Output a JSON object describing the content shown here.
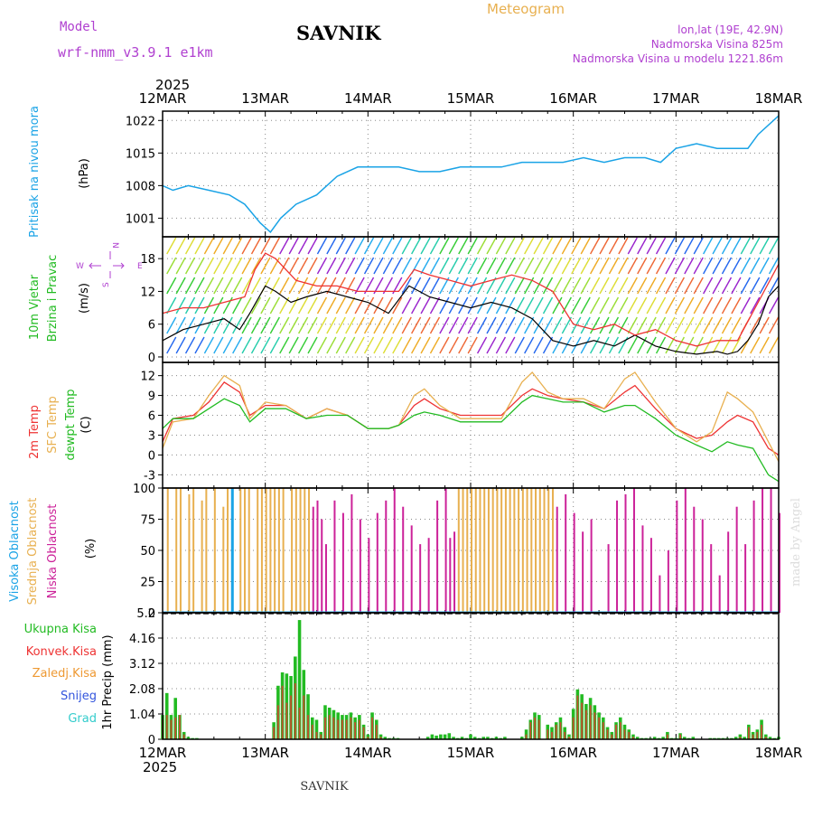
{
  "header": {
    "title": "SAVNIK",
    "meteogram_label": "Meteogram",
    "model_label": "Model",
    "model_name": "wrf-nmm_v3.9.1  e1km",
    "lonlat": "lon,lat (19E, 42.9N)",
    "altitude": "Nadmorska Visina 825m",
    "model_altitude": "Nadmorska Visina u modelu 1221.86m",
    "year_top": "2025",
    "year_bottom": "2025",
    "footer_title": "SAVNIK",
    "watermark": "made by Angel"
  },
  "colors": {
    "pressure": "#1aa3e6",
    "purple_text": "#b040d0",
    "orange_text": "#e8b050",
    "green": "#22bb22",
    "red": "#ee3333",
    "orange": "#ee9933",
    "blue": "#3355dd",
    "cyan": "#33cccc",
    "magenta": "#cc2299"
  },
  "x_axis": {
    "tick_labels": [
      "12MAR",
      "13MAR",
      "14MAR",
      "15MAR",
      "16MAR",
      "17MAR",
      "18MAR"
    ]
  },
  "chart_data": [
    {
      "type": "line",
      "panel": "pressure",
      "ylabel_main": "Pritisak na nivou mora",
      "unit": "(hPa)",
      "yticks": [
        "1001",
        "1008",
        "1015",
        "1022"
      ],
      "ylim": [
        997,
        1024
      ],
      "x_unit": "days since 12MAR 00h",
      "series": [
        {
          "name": "Pritisak na nivou mora",
          "color": "#1aa3e6",
          "x": [
            0,
            0.1,
            0.25,
            0.45,
            0.65,
            0.8,
            0.95,
            1.05,
            1.15,
            1.3,
            1.5,
            1.7,
            1.9,
            2.1,
            2.3,
            2.5,
            2.7,
            2.9,
            3.1,
            3.3,
            3.5,
            3.7,
            3.9,
            4.1,
            4.3,
            4.5,
            4.7,
            4.85,
            5.0,
            5.2,
            5.4,
            5.6,
            5.7,
            5.8,
            6.0
          ],
          "values": [
            1008,
            1007,
            1008,
            1007,
            1006,
            1004,
            1000,
            998,
            1001,
            1004,
            1006,
            1010,
            1012,
            1012,
            1012,
            1011,
            1011,
            1012,
            1012,
            1012,
            1013,
            1013,
            1013,
            1014,
            1013,
            1014,
            1014,
            1013,
            1016,
            1017,
            1016,
            1016,
            1016,
            1019,
            1023
          ]
        }
      ]
    },
    {
      "type": "line",
      "panel": "wind",
      "ylabel_main": "10m Vjetar",
      "ylabel_sub": "Brzina i Pravac",
      "unit": "(m/s)",
      "compass": [
        "N",
        "E",
        "S",
        "W"
      ],
      "yticks": [
        "0",
        "6",
        "12",
        "18"
      ],
      "ylim": [
        -1,
        22
      ],
      "series": [
        {
          "name": "speed",
          "color": "#000000",
          "x": [
            0,
            0.2,
            0.4,
            0.6,
            0.75,
            0.85,
            1.0,
            1.1,
            1.25,
            1.4,
            1.6,
            1.8,
            2.0,
            2.2,
            2.4,
            2.5,
            2.6,
            2.8,
            3.0,
            3.2,
            3.4,
            3.6,
            3.8,
            4.0,
            4.2,
            4.4,
            4.6,
            4.8,
            5.0,
            5.2,
            5.4,
            5.5,
            5.6,
            5.7,
            5.8,
            5.9,
            6.0
          ],
          "values": [
            3,
            5,
            6,
            7,
            5,
            8,
            13,
            12,
            10,
            11,
            12,
            11,
            10,
            8,
            13,
            12,
            11,
            10,
            9,
            10,
            9,
            7,
            3,
            2,
            3,
            2,
            4,
            2,
            1,
            0.5,
            1,
            0.5,
            1,
            3,
            6,
            11,
            13
          ]
        },
        {
          "name": "gust",
          "color": "#ee3333",
          "x": [
            0,
            0.2,
            0.4,
            0.6,
            0.8,
            0.9,
            1.0,
            1.1,
            1.3,
            1.5,
            1.7,
            1.9,
            2.1,
            2.3,
            2.45,
            2.6,
            2.8,
            3.0,
            3.2,
            3.4,
            3.6,
            3.8,
            4.0,
            4.2,
            4.4,
            4.6,
            4.8,
            5.0,
            5.2,
            5.4,
            5.6,
            5.8,
            6.0
          ],
          "values": [
            8,
            9,
            9,
            10,
            11,
            16,
            19,
            18,
            14,
            13,
            13,
            12,
            12,
            12,
            16,
            15,
            14,
            13,
            14,
            15,
            14,
            12,
            6,
            5,
            6,
            4,
            5,
            3,
            2,
            3,
            3,
            10,
            17
          ]
        }
      ]
    },
    {
      "type": "line",
      "panel": "temperature",
      "unit": "(C)",
      "yticks": [
        "-3",
        "0",
        "3",
        "6",
        "9",
        "12"
      ],
      "ylim": [
        -5,
        14
      ],
      "series": [
        {
          "name": "2m Temp",
          "color": "#ee3333",
          "x": [
            0,
            0.1,
            0.3,
            0.45,
            0.6,
            0.75,
            0.85,
            1.0,
            1.2,
            1.4,
            1.6,
            1.8,
            2.0,
            2.2,
            2.3,
            2.45,
            2.55,
            2.7,
            2.9,
            3.1,
            3.3,
            3.5,
            3.6,
            3.75,
            3.9,
            4.1,
            4.3,
            4.5,
            4.6,
            4.8,
            5.0,
            5.2,
            5.35,
            5.5,
            5.6,
            5.75,
            5.9,
            6.0
          ],
          "values": [
            2,
            5.5,
            6,
            8,
            11,
            9.5,
            6,
            7.5,
            7.5,
            5.5,
            7,
            6,
            4,
            4,
            4.5,
            7.5,
            8.5,
            7,
            6,
            6,
            6,
            9,
            10,
            9,
            8.5,
            8,
            7,
            9.5,
            10.5,
            7,
            4,
            2.5,
            3,
            5,
            6,
            5,
            1,
            0
          ]
        },
        {
          "name": "SFC Temp",
          "color": "#e8b050",
          "x": [
            0,
            0.1,
            0.3,
            0.45,
            0.6,
            0.75,
            0.85,
            1.0,
            1.2,
            1.4,
            1.6,
            1.8,
            2.0,
            2.2,
            2.3,
            2.45,
            2.55,
            2.7,
            2.9,
            3.1,
            3.3,
            3.5,
            3.6,
            3.75,
            3.9,
            4.1,
            4.3,
            4.5,
            4.6,
            4.8,
            5.0,
            5.2,
            5.35,
            5.5,
            5.6,
            5.75,
            5.9,
            6.0
          ],
          "values": [
            1,
            5,
            5.5,
            9,
            12,
            10.5,
            5.5,
            8,
            7.5,
            5.5,
            7,
            6,
            4,
            4,
            4.5,
            9,
            10,
            7.5,
            5.5,
            5.5,
            5.5,
            11,
            12.5,
            9.5,
            8.5,
            8.5,
            7,
            11.5,
            12.5,
            8,
            4,
            2,
            3.5,
            9.5,
            8.5,
            6.5,
            2,
            -1
          ]
        },
        {
          "name": "dewpt Temp",
          "color": "#22bb22",
          "x": [
            0,
            0.1,
            0.3,
            0.45,
            0.6,
            0.75,
            0.85,
            1.0,
            1.2,
            1.4,
            1.6,
            1.8,
            2.0,
            2.2,
            2.3,
            2.45,
            2.55,
            2.7,
            2.9,
            3.1,
            3.3,
            3.5,
            3.6,
            3.75,
            3.9,
            4.1,
            4.3,
            4.5,
            4.6,
            4.8,
            5.0,
            5.2,
            5.35,
            5.5,
            5.6,
            5.75,
            5.9,
            6.0
          ],
          "values": [
            4,
            5.5,
            5.5,
            7,
            8.5,
            7.5,
            5,
            7,
            7,
            5.5,
            6,
            6,
            4,
            4,
            4.5,
            6,
            6.5,
            6,
            5,
            5,
            5,
            8,
            9,
            8.5,
            8,
            8,
            6.5,
            7.5,
            7.5,
            5.5,
            3,
            1.5,
            0.5,
            2,
            1.5,
            1,
            -3,
            -4
          ]
        }
      ]
    },
    {
      "type": "bar",
      "panel": "cloud",
      "unit": "(%)",
      "yticks": [
        "0",
        "25",
        "50",
        "75",
        "100"
      ],
      "ylim": [
        0,
        100
      ],
      "series_names": [
        "Visoka Oblacnost",
        "Srednja Oblacnost",
        "Niska Oblacnost"
      ],
      "series_colors": [
        "#1aa3e6",
        "#e8b050",
        "#cc2299"
      ],
      "bars_x_hours": [
        1,
        3,
        4,
        6,
        7,
        9,
        10,
        12,
        14,
        15,
        16,
        18,
        19,
        20,
        22,
        23,
        24,
        25,
        26,
        27,
        28,
        30,
        31,
        32,
        33,
        34,
        35,
        36,
        37,
        38,
        40,
        42,
        44,
        46,
        48,
        50,
        52,
        54,
        56,
        58,
        60,
        62,
        64,
        66,
        67,
        68,
        69,
        70,
        71,
        72,
        73,
        74,
        75,
        76,
        77,
        78,
        79,
        80,
        81,
        82,
        83,
        84,
        85,
        86,
        87,
        88,
        89,
        90,
        91,
        92,
        94,
        96,
        98,
        100,
        104,
        106,
        108,
        110,
        112,
        114,
        116,
        118,
        120,
        122,
        124,
        126,
        128,
        130,
        132,
        134,
        136,
        138,
        140,
        142,
        144
      ],
      "bars_level": [
        1,
        1,
        1,
        1,
        1,
        1,
        1,
        1,
        1,
        1,
        0,
        1,
        1,
        1,
        1,
        1,
        1,
        1,
        1,
        1,
        1,
        1,
        1,
        1,
        1,
        1,
        2,
        2,
        2,
        2,
        2,
        2,
        2,
        2,
        2,
        2,
        2,
        2,
        2,
        2,
        2,
        2,
        2,
        2,
        2,
        2,
        1,
        1,
        1,
        1,
        1,
        1,
        1,
        1,
        1,
        1,
        1,
        1,
        1,
        1,
        1,
        1,
        1,
        1,
        1,
        1,
        1,
        1,
        1,
        2,
        2,
        2,
        2,
        2,
        2,
        2,
        2,
        2,
        2,
        2,
        2,
        2,
        2,
        2,
        2,
        2,
        2,
        2,
        2,
        2,
        2,
        2,
        2,
        2,
        2
      ],
      "bars_value": [
        100,
        100,
        100,
        95,
        100,
        90,
        100,
        100,
        85,
        100,
        100,
        100,
        100,
        100,
        100,
        100,
        100,
        100,
        100,
        100,
        100,
        100,
        100,
        100,
        100,
        100,
        85,
        90,
        75,
        55,
        90,
        80,
        95,
        75,
        60,
        80,
        90,
        100,
        85,
        70,
        55,
        60,
        90,
        100,
        60,
        65,
        100,
        100,
        100,
        100,
        100,
        100,
        100,
        100,
        100,
        100,
        100,
        100,
        100,
        100,
        100,
        100,
        100,
        100,
        100,
        100,
        100,
        100,
        100,
        85,
        95,
        80,
        65,
        75,
        55,
        90,
        95,
        100,
        70,
        60,
        30,
        50,
        90,
        100,
        85,
        75,
        55,
        30,
        65,
        85,
        55,
        90,
        100,
        100,
        80
      ]
    },
    {
      "type": "bar",
      "panel": "precip",
      "ylabel_main": "1hr Precip",
      "unit": "(mm)",
      "yticks": [
        "0",
        "1.04",
        "2.08",
        "3.12",
        "4.16",
        "5.2"
      ],
      "ylim": [
        0,
        5.2
      ],
      "legend": [
        "Ukupna Kisa",
        "Konvek.Kisa",
        "Zaledj.Kisa",
        "Snijeg",
        "Grad"
      ],
      "legend_colors": [
        "#22bb22",
        "#ee3333",
        "#ee9933",
        "#3355dd",
        "#33cccc"
      ],
      "x_hours": [
        0,
        1,
        2,
        3,
        4,
        5,
        6,
        7,
        8,
        26,
        27,
        28,
        29,
        30,
        31,
        32,
        33,
        34,
        35,
        36,
        37,
        38,
        39,
        40,
        41,
        42,
        43,
        44,
        45,
        46,
        47,
        48,
        49,
        50,
        51,
        52,
        53,
        54,
        55,
        62,
        63,
        64,
        65,
        66,
        67,
        68,
        69,
        70,
        71,
        72,
        73,
        74,
        75,
        76,
        77,
        78,
        79,
        80,
        84,
        85,
        86,
        87,
        88,
        90,
        91,
        92,
        93,
        94,
        95,
        96,
        97,
        98,
        99,
        100,
        101,
        102,
        103,
        104,
        105,
        106,
        107,
        108,
        109,
        110,
        111,
        112,
        113,
        114,
        115,
        116,
        117,
        118,
        119,
        120,
        121,
        122,
        123,
        124,
        128,
        129,
        130,
        131,
        132,
        133,
        134,
        135,
        136,
        137,
        138,
        139,
        140,
        141,
        142,
        143,
        144
      ],
      "values": [
        1.0,
        1.9,
        1.0,
        1.7,
        1.0,
        0.3,
        0.1,
        0.05,
        0.05,
        0.7,
        2.2,
        2.75,
        2.7,
        2.6,
        3.4,
        4.9,
        2.85,
        1.85,
        0.9,
        0.8,
        0.3,
        1.4,
        1.3,
        1.2,
        1.1,
        1.0,
        1.0,
        1.1,
        0.9,
        1.0,
        0.6,
        0.2,
        1.1,
        0.8,
        0.2,
        0.1,
        0.05,
        0.05,
        0.05,
        0.1,
        0.2,
        0.15,
        0.2,
        0.2,
        0.25,
        0.1,
        0.05,
        0.1,
        0.05,
        0.2,
        0.1,
        0.05,
        0.1,
        0.1,
        0.05,
        0.1,
        0.05,
        0.1,
        0.1,
        0.4,
        0.8,
        1.1,
        1.0,
        0.6,
        0.5,
        0.7,
        0.9,
        0.5,
        0.2,
        1.25,
        2.05,
        1.85,
        1.45,
        1.7,
        1.4,
        1.1,
        0.9,
        0.5,
        0.3,
        0.7,
        0.9,
        0.6,
        0.4,
        0.2,
        0.1,
        0.05,
        0.05,
        0.05,
        0.1,
        0.05,
        0.1,
        0.3,
        0.05,
        0.05,
        0.25,
        0.1,
        0.05,
        0.1,
        0.05,
        0.05,
        0.05,
        0.05,
        0.05,
        0.05,
        0.1,
        0.2,
        0.1,
        0.6,
        0.3,
        0.4,
        0.8,
        0.2,
        0.1,
        0.05,
        0.1
      ],
      "convective": [
        0.8,
        1.0,
        0.8,
        0.9,
        1.0,
        0.2,
        0,
        0,
        0,
        0.5,
        1.4,
        2.2,
        1.5,
        1.8,
        2.3,
        1.3,
        1.8,
        1.0,
        0.6,
        0.3,
        0.2,
        0.9,
        1.0,
        0.9,
        0.8,
        0.8,
        0.8,
        0.9,
        0.7,
        0.8,
        0.5,
        0.1,
        0.9,
        0.6,
        0.1,
        0,
        0,
        0,
        0,
        0,
        0,
        0,
        0,
        0,
        0,
        0,
        0,
        0,
        0,
        0,
        0,
        0,
        0,
        0,
        0,
        0,
        0,
        0,
        0,
        0.2,
        0.7,
        0.9,
        0.8,
        0.4,
        0.3,
        0.6,
        0.7,
        0.3,
        0.1,
        0.9,
        1.8,
        1.5,
        1.2,
        1.4,
        1.1,
        0.9,
        0.7,
        0.4,
        0.2,
        0.6,
        0.7,
        0.4,
        0.3,
        0.1,
        0,
        0,
        0,
        0,
        0,
        0,
        0,
        0.2,
        0,
        0,
        0.2,
        0,
        0,
        0,
        0,
        0,
        0,
        0,
        0,
        0,
        0,
        0.1,
        0,
        0.5,
        0.2,
        0.3,
        0.6,
        0.1,
        0,
        0,
        0
      ]
    }
  ]
}
